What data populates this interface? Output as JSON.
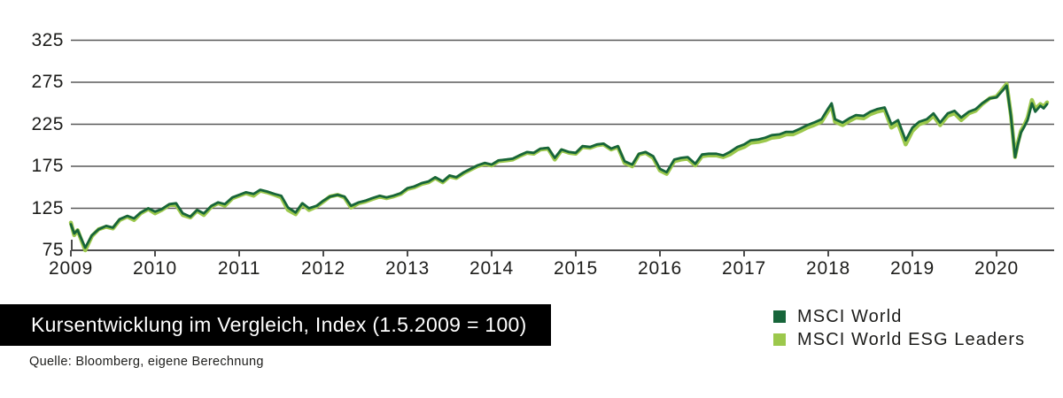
{
  "header": {
    "title": "Kursentwicklung im Vergleich, Index (1.5.2009 = 100)"
  },
  "source_note": "Quelle: Bloomberg, eigene Berechnung",
  "legend": {
    "items": [
      {
        "label": "MSCI World",
        "color": "#17653a"
      },
      {
        "label": "MSCI World ESG Leaders",
        "color": "#9cc84c"
      }
    ]
  },
  "colors": {
    "title_bg": "#000000",
    "title_text": "#ffffff",
    "grid": "#595959",
    "axis": "#4d4d4d",
    "axis_text": "#1d1d1b"
  },
  "chart_data": {
    "type": "line",
    "title": "Kursentwicklung im Vergleich, Index (1.5.2009 = 100)",
    "xlabel": "",
    "ylabel": "",
    "grid": "horizontal-only",
    "legend_position": "bottom-right",
    "x_tick_years": [
      2009,
      2010,
      2011,
      2012,
      2013,
      2014,
      2015,
      2016,
      2017,
      2018,
      2019,
      2020
    ],
    "x_tick_labels": [
      "2009",
      "2010",
      "2011",
      "2012",
      "2013",
      "2014",
      "2015",
      "2016",
      "2017",
      "2018",
      "2019",
      "2020"
    ],
    "y_ticks": [
      325,
      275,
      225,
      175,
      125,
      75
    ],
    "xlim": [
      2009.0,
      2020.68
    ],
    "ylim": [
      75,
      337
    ],
    "x": [
      2009.0,
      2009.04,
      2009.08,
      2009.17,
      2009.25,
      2009.33,
      2009.42,
      2009.5,
      2009.58,
      2009.67,
      2009.75,
      2009.83,
      2009.92,
      2010.0,
      2010.08,
      2010.17,
      2010.25,
      2010.33,
      2010.42,
      2010.5,
      2010.58,
      2010.67,
      2010.75,
      2010.83,
      2010.92,
      2011.0,
      2011.08,
      2011.17,
      2011.25,
      2011.33,
      2011.42,
      2011.5,
      2011.58,
      2011.67,
      2011.75,
      2011.83,
      2011.92,
      2012.0,
      2012.08,
      2012.17,
      2012.25,
      2012.33,
      2012.42,
      2012.5,
      2012.58,
      2012.67,
      2012.75,
      2012.83,
      2012.92,
      2013.0,
      2013.08,
      2013.17,
      2013.25,
      2013.33,
      2013.42,
      2013.5,
      2013.58,
      2013.67,
      2013.75,
      2013.83,
      2013.92,
      2014.0,
      2014.08,
      2014.17,
      2014.25,
      2014.33,
      2014.42,
      2014.5,
      2014.58,
      2014.67,
      2014.75,
      2014.83,
      2014.92,
      2015.0,
      2015.08,
      2015.17,
      2015.25,
      2015.33,
      2015.42,
      2015.5,
      2015.58,
      2015.67,
      2015.75,
      2015.83,
      2015.92,
      2016.0,
      2016.08,
      2016.17,
      2016.25,
      2016.33,
      2016.42,
      2016.5,
      2016.58,
      2016.67,
      2016.75,
      2016.83,
      2016.92,
      2017.0,
      2017.08,
      2017.17,
      2017.25,
      2017.33,
      2017.42,
      2017.5,
      2017.58,
      2017.67,
      2017.75,
      2017.83,
      2017.92,
      2018.0,
      2018.04,
      2018.08,
      2018.17,
      2018.25,
      2018.33,
      2018.42,
      2018.5,
      2018.58,
      2018.67,
      2018.75,
      2018.83,
      2018.92,
      2019.0,
      2019.08,
      2019.17,
      2019.25,
      2019.33,
      2019.42,
      2019.5,
      2019.58,
      2019.67,
      2019.75,
      2019.83,
      2019.92,
      2020.0,
      2020.08,
      2020.12,
      2020.17,
      2020.22,
      2020.25,
      2020.29,
      2020.33,
      2020.37,
      2020.42,
      2020.46,
      2020.52,
      2020.56,
      2020.6
    ],
    "series": [
      {
        "name": "MSCI World",
        "color": "#17653a",
        "stroke_width": 2.8,
        "values": [
          106,
          95,
          99,
          78,
          93,
          100,
          104,
          102,
          112,
          116,
          113,
          120,
          125,
          121,
          124,
          130,
          131,
          119,
          115,
          123,
          119,
          128,
          132,
          130,
          138,
          141,
          144,
          142,
          147,
          145,
          142,
          140,
          126,
          120,
          131,
          125,
          128,
          134,
          139,
          141,
          139,
          128,
          132,
          134,
          137,
          140,
          138,
          140,
          143,
          149,
          151,
          155,
          157,
          162,
          157,
          164,
          162,
          168,
          172,
          176,
          179,
          177,
          182,
          183,
          184,
          188,
          192,
          191,
          196,
          197,
          185,
          195,
          192,
          191,
          199,
          198,
          201,
          202,
          196,
          199,
          181,
          177,
          190,
          192,
          187,
          172,
          168,
          183,
          185,
          186,
          178,
          189,
          190,
          190,
          188,
          192,
          198,
          201,
          206,
          207,
          209,
          212,
          213,
          216,
          216,
          220,
          224,
          227,
          231,
          244,
          250,
          231,
          227,
          232,
          236,
          235,
          240,
          243,
          245,
          225,
          230,
          206,
          221,
          228,
          231,
          238,
          227,
          238,
          241,
          233,
          240,
          243,
          250,
          256,
          257,
          266,
          271,
          235,
          186,
          200,
          215,
          222,
          230,
          250,
          240,
          247,
          244,
          249
        ]
      },
      {
        "name": "MSCI World ESG Leaders",
        "color": "#9cc84c",
        "stroke_width": 4.5,
        "values": [
          108,
          93,
          99,
          75,
          92,
          100,
          103,
          101,
          111,
          115,
          111,
          119,
          124,
          119,
          123,
          129,
          129,
          117,
          114,
          122,
          117,
          127,
          131,
          128,
          137,
          140,
          143,
          140,
          146,
          144,
          141,
          138,
          123,
          118,
          130,
          123,
          127,
          133,
          139,
          141,
          138,
          126,
          131,
          133,
          136,
          139,
          137,
          139,
          142,
          148,
          150,
          154,
          156,
          161,
          156,
          163,
          161,
          167,
          171,
          175,
          178,
          176,
          181,
          182,
          183,
          187,
          191,
          190,
          195,
          196,
          183,
          194,
          191,
          190,
          198,
          197,
          200,
          201,
          195,
          198,
          179,
          175,
          189,
          191,
          185,
          170,
          166,
          181,
          183,
          184,
          176,
          187,
          188,
          188,
          186,
          189,
          195,
          198,
          203,
          204,
          206,
          209,
          210,
          213,
          213,
          217,
          221,
          224,
          228,
          241,
          247,
          228,
          224,
          229,
          233,
          232,
          237,
          240,
          242,
          221,
          226,
          201,
          217,
          225,
          228,
          235,
          224,
          235,
          238,
          230,
          238,
          241,
          249,
          256,
          258,
          268,
          273,
          236,
          186,
          202,
          217,
          224,
          233,
          254,
          243,
          249,
          246,
          251
        ]
      }
    ]
  }
}
